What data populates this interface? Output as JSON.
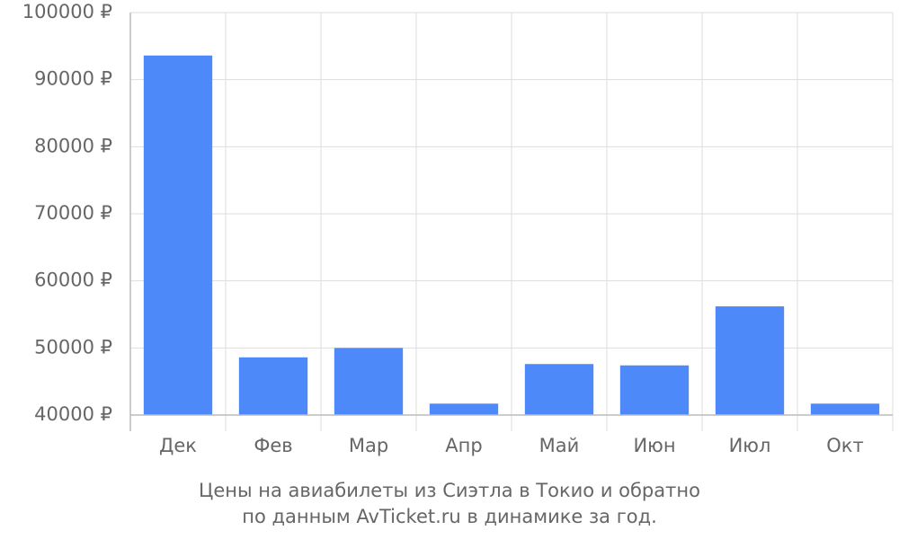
{
  "chart_data": {
    "type": "bar",
    "title": [
      "Цены на авиабилеты из Сиэтла в Токио и обратно",
      "по данным AvTicket.ru в динамике за год."
    ],
    "categories": [
      "Дек",
      "Фев",
      "Мар",
      "Апр",
      "Май",
      "Июн",
      "Июл",
      "Окт"
    ],
    "values": [
      93600,
      48600,
      50000,
      41700,
      47600,
      47400,
      56200,
      41700
    ],
    "color": "#4e89fa",
    "ylim": [
      40000,
      100000
    ],
    "yticks": [
      {
        "value": 40000,
        "label": "40000 ₽"
      },
      {
        "value": 50000,
        "label": "50000 ₽"
      },
      {
        "value": 60000,
        "label": "60000 ₽"
      },
      {
        "value": 70000,
        "label": "70000 ₽"
      },
      {
        "value": 80000,
        "label": "80000 ₽"
      },
      {
        "value": 90000,
        "label": "90000 ₽"
      },
      {
        "value": 100000,
        "label": "100000 ₽"
      }
    ],
    "grid": true
  }
}
